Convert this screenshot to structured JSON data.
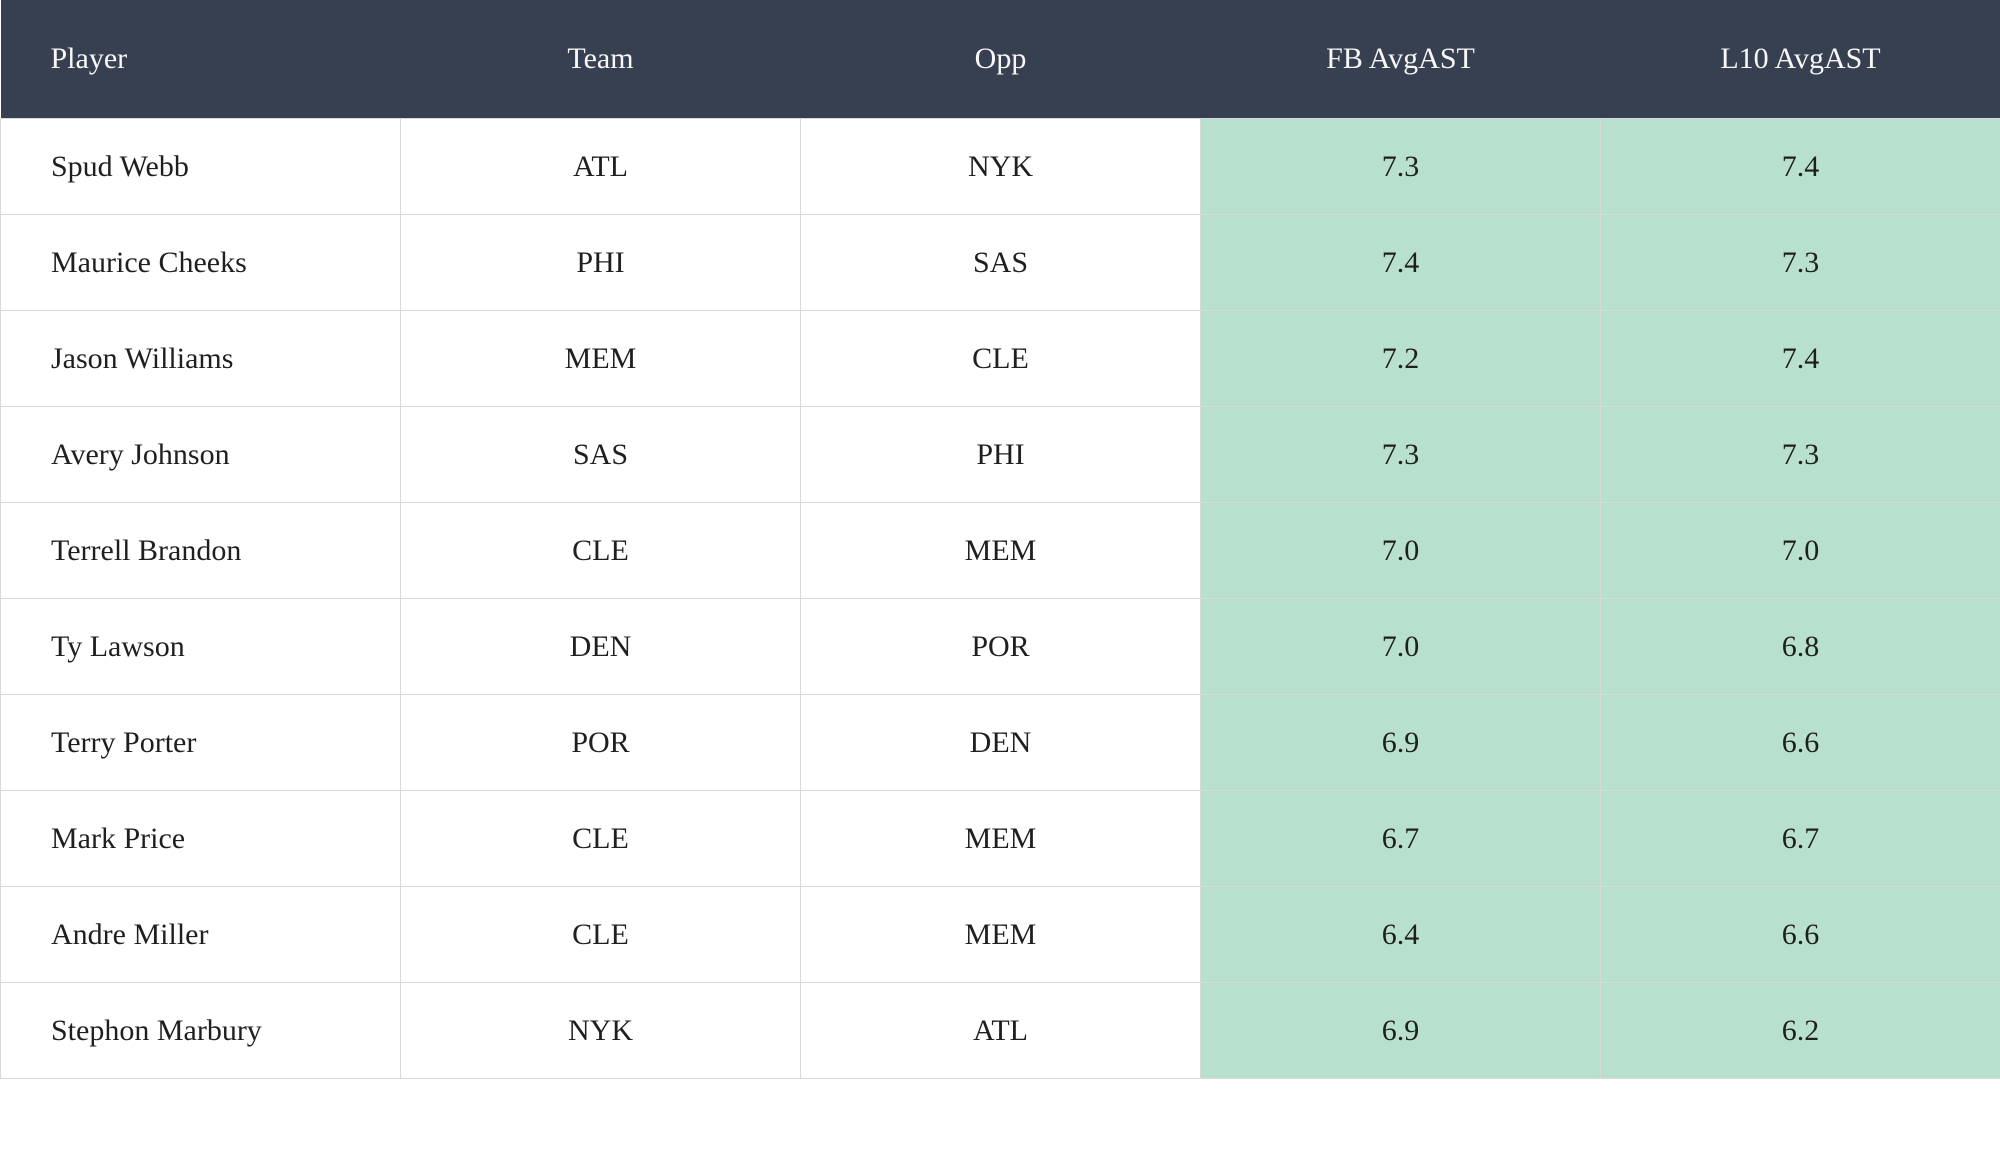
{
  "table": {
    "columns": [
      {
        "label": "Player",
        "align": "left",
        "highlight": false
      },
      {
        "label": "Team",
        "align": "center",
        "highlight": false
      },
      {
        "label": "Opp",
        "align": "center",
        "highlight": false
      },
      {
        "label": "FB AvgAST",
        "align": "center",
        "highlight": true
      },
      {
        "label": "L10 AvgAST",
        "align": "center",
        "highlight": true
      }
    ],
    "rows": [
      {
        "player": "Spud Webb",
        "team": "ATL",
        "opp": "NYK",
        "fb_avg_ast": "7.3",
        "l10_avg_ast": "7.4"
      },
      {
        "player": "Maurice Cheeks",
        "team": "PHI",
        "opp": "SAS",
        "fb_avg_ast": "7.4",
        "l10_avg_ast": "7.3"
      },
      {
        "player": "Jason Williams",
        "team": "MEM",
        "opp": "CLE",
        "fb_avg_ast": "7.2",
        "l10_avg_ast": "7.4"
      },
      {
        "player": "Avery Johnson",
        "team": "SAS",
        "opp": "PHI",
        "fb_avg_ast": "7.3",
        "l10_avg_ast": "7.3"
      },
      {
        "player": "Terrell Brandon",
        "team": "CLE",
        "opp": "MEM",
        "fb_avg_ast": "7.0",
        "l10_avg_ast": "7.0"
      },
      {
        "player": "Ty Lawson",
        "team": "DEN",
        "opp": "POR",
        "fb_avg_ast": "7.0",
        "l10_avg_ast": "6.8"
      },
      {
        "player": "Terry Porter",
        "team": "POR",
        "opp": "DEN",
        "fb_avg_ast": "6.9",
        "l10_avg_ast": "6.6"
      },
      {
        "player": "Mark Price",
        "team": "CLE",
        "opp": "MEM",
        "fb_avg_ast": "6.7",
        "l10_avg_ast": "6.7"
      },
      {
        "player": "Andre Miller",
        "team": "CLE",
        "opp": "MEM",
        "fb_avg_ast": "6.4",
        "l10_avg_ast": "6.6"
      },
      {
        "player": "Stephon Marbury",
        "team": "NYK",
        "opp": "ATL",
        "fb_avg_ast": "6.9",
        "l10_avg_ast": "6.2"
      }
    ]
  },
  "colors": {
    "header_background": "#374050",
    "header_text": "#f7f7f7",
    "body_text": "#1f1f1f",
    "highlight_cell_background": "#b7e1cd",
    "grid_border": "#d9d9d9",
    "row_background": "#ffffff"
  }
}
